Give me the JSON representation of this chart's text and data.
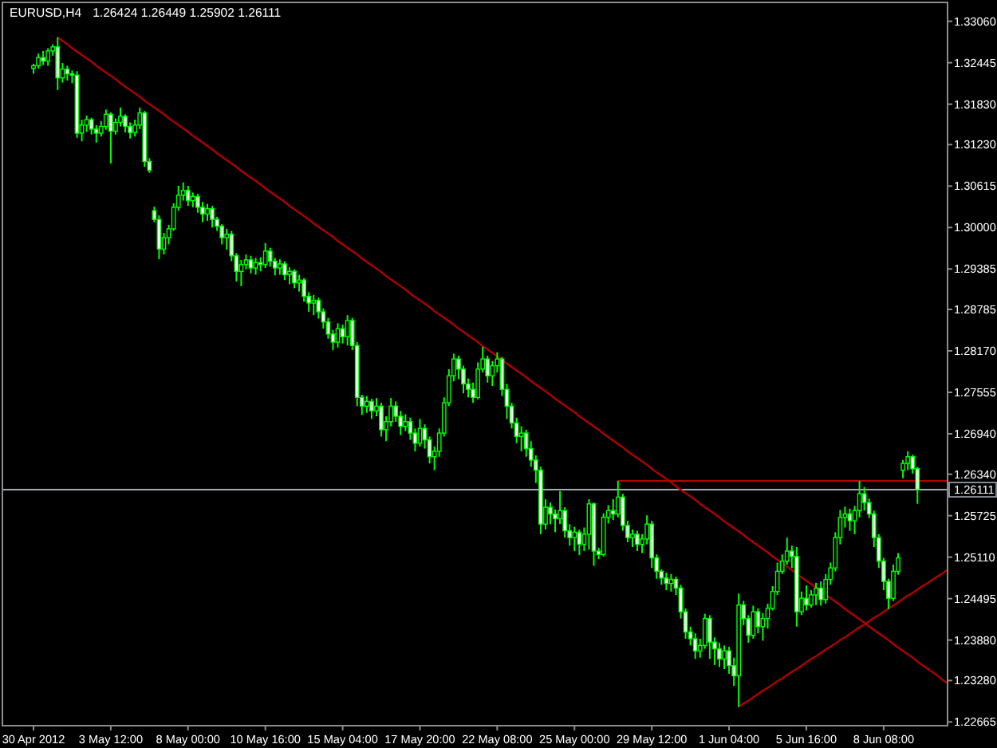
{
  "chart_data": {
    "type": "candlestick",
    "title": "EURUSD,H4",
    "subtitle": "1.26424 1.26449 1.25902 1.26111",
    "color": "#00ff00",
    "categories": [
      "30 Apr 2012",
      null,
      null,
      null,
      null,
      null,
      null,
      null,
      null,
      null,
      null,
      null,
      null,
      null,
      null,
      null,
      "3 May 12:00",
      null,
      null,
      null,
      null,
      null,
      null,
      null,
      null,
      null,
      null,
      null,
      null,
      null,
      null,
      null,
      "8 May 00:00",
      null,
      null,
      null,
      null,
      null,
      null,
      null,
      null,
      null,
      null,
      null,
      null,
      null,
      null,
      null,
      "10 May 16:00",
      null,
      null,
      null,
      null,
      null,
      null,
      null,
      null,
      null,
      null,
      null,
      null,
      null,
      null,
      null,
      "15 May 04:00",
      null,
      null,
      null,
      null,
      null,
      null,
      null,
      null,
      null,
      null,
      null,
      null,
      null,
      null,
      null,
      "17 May 20:00",
      null,
      null,
      null,
      null,
      null,
      null,
      null,
      null,
      null,
      null,
      null,
      null,
      null,
      null,
      null,
      "22 May 08:00",
      null,
      null,
      null,
      null,
      null,
      null,
      null,
      null,
      null,
      null,
      null,
      null,
      null,
      null,
      null,
      "25 May 00:00",
      null,
      null,
      null,
      null,
      null,
      null,
      null,
      null,
      null,
      null,
      null,
      null,
      null,
      null,
      null,
      "29 May 12:00",
      null,
      null,
      null,
      null,
      null,
      null,
      null,
      null,
      null,
      null,
      null,
      null,
      null,
      null,
      null,
      "1 Jun 04:00",
      null,
      null,
      null,
      null,
      null,
      null,
      null,
      null,
      null,
      null,
      null,
      null,
      null,
      null,
      null,
      "5 Jun 16:00",
      null,
      null,
      null,
      null,
      null,
      null,
      null,
      null,
      null,
      null,
      null,
      null,
      null,
      null,
      null,
      "8 Jun 08:00",
      null,
      null,
      null,
      null,
      null,
      null,
      null,
      null,
      null,
      null,
      null,
      null,
      null
    ],
    "ohlc": [
      [
        1.3236,
        1.3243,
        1.3228,
        1.324
      ],
      [
        1.324,
        1.3258,
        1.3236,
        1.3252
      ],
      [
        1.3252,
        1.3262,
        1.3241,
        1.3247
      ],
      [
        1.3247,
        1.3266,
        1.324,
        1.3262
      ],
      [
        1.3262,
        1.3272,
        1.3255,
        1.3268
      ],
      [
        1.3268,
        1.3282,
        1.3204,
        1.3222
      ],
      [
        1.3222,
        1.3244,
        1.3215,
        1.3235
      ],
      [
        1.3235,
        1.324,
        1.3218,
        1.3228
      ],
      [
        1.3228,
        1.3233,
        1.3214,
        1.3226
      ],
      [
        1.3226,
        1.3232,
        1.3133,
        1.314
      ],
      [
        1.314,
        1.316,
        1.3128,
        1.3152
      ],
      [
        1.3152,
        1.3166,
        1.3142,
        1.316
      ],
      [
        1.316,
        1.3163,
        1.3138,
        1.3146
      ],
      [
        1.3146,
        1.3152,
        1.3126,
        1.314
      ],
      [
        1.314,
        1.3158,
        1.3135,
        1.315
      ],
      [
        1.315,
        1.3175,
        1.3145,
        1.3168
      ],
      [
        1.3168,
        1.3171,
        1.3095,
        1.3143
      ],
      [
        1.3143,
        1.3162,
        1.3138,
        1.3156
      ],
      [
        1.3156,
        1.3178,
        1.315,
        1.3165
      ],
      [
        1.3165,
        1.3168,
        1.3141,
        1.315
      ],
      [
        1.315,
        1.3156,
        1.3132,
        1.3141
      ],
      [
        1.3141,
        1.316,
        1.3135,
        1.3152
      ],
      [
        1.3152,
        1.3178,
        1.3146,
        1.317
      ],
      [
        1.317,
        1.3173,
        1.309,
        1.3098
      ],
      [
        1.3098,
        1.3103,
        1.3081,
        1.3085
      ],
      [
        1.3025,
        1.3031,
        1.3008,
        1.3012
      ],
      [
        1.3012,
        1.3018,
        1.2953,
        1.2968
      ],
      [
        1.2968,
        1.2992,
        1.296,
        1.2985
      ],
      [
        1.2985,
        1.3004,
        1.2975,
        1.2998
      ],
      [
        1.2998,
        1.3036,
        1.2995,
        1.303
      ],
      [
        1.303,
        1.3062,
        1.3025,
        1.3048
      ],
      [
        1.3048,
        1.3067,
        1.304,
        1.3055
      ],
      [
        1.3055,
        1.3062,
        1.3032,
        1.304
      ],
      [
        1.304,
        1.3052,
        1.303,
        1.3046
      ],
      [
        1.3046,
        1.305,
        1.3022,
        1.303
      ],
      [
        1.303,
        1.3038,
        1.3008,
        1.302
      ],
      [
        1.302,
        1.3035,
        1.301,
        1.3028
      ],
      [
        1.3028,
        1.3032,
        1.3,
        1.3012
      ],
      [
        1.3012,
        1.3016,
        1.2995,
        1.3002
      ],
      [
        1.3002,
        1.3005,
        1.2975,
        1.2985
      ],
      [
        1.2985,
        1.2998,
        1.2967,
        1.299
      ],
      [
        1.299,
        1.2995,
        1.295,
        1.2958
      ],
      [
        1.2958,
        1.2962,
        1.292,
        1.2935
      ],
      [
        1.2935,
        1.2952,
        1.2913,
        1.2945
      ],
      [
        1.2945,
        1.296,
        1.2938,
        1.2952
      ],
      [
        1.2952,
        1.2958,
        1.2932,
        1.294
      ],
      [
        1.294,
        1.2955,
        1.293,
        1.2948
      ],
      [
        1.2948,
        1.2956,
        1.2935,
        1.2945
      ],
      [
        1.2945,
        1.2977,
        1.294,
        1.2965
      ],
      [
        1.2965,
        1.297,
        1.2942,
        1.295
      ],
      [
        1.295,
        1.2955,
        1.2929,
        1.294
      ],
      [
        1.294,
        1.2953,
        1.293,
        1.2946
      ],
      [
        1.2946,
        1.295,
        1.2922,
        1.293
      ],
      [
        1.293,
        1.2941,
        1.2916,
        1.2935
      ],
      [
        1.2935,
        1.2938,
        1.291,
        1.2918
      ],
      [
        1.2918,
        1.293,
        1.2905,
        1.2922
      ],
      [
        1.2922,
        1.2925,
        1.289,
        1.2898
      ],
      [
        1.2898,
        1.2904,
        1.2875,
        1.2888
      ],
      [
        1.2888,
        1.29,
        1.287,
        1.2892
      ],
      [
        1.2892,
        1.2896,
        1.2865,
        1.2875
      ],
      [
        1.2875,
        1.288,
        1.285,
        1.286
      ],
      [
        1.286,
        1.2866,
        1.2835,
        1.2842
      ],
      [
        1.2842,
        1.2848,
        1.2818,
        1.283
      ],
      [
        1.283,
        1.2858,
        1.2822,
        1.285
      ],
      [
        1.285,
        1.2856,
        1.2828,
        1.2838
      ],
      [
        1.2838,
        1.287,
        1.2825,
        1.2862
      ],
      [
        1.2862,
        1.2866,
        1.2818,
        1.2825
      ],
      [
        1.2825,
        1.283,
        1.2735,
        1.2748
      ],
      [
        1.2748,
        1.2752,
        1.2722,
        1.2735
      ],
      [
        1.2735,
        1.275,
        1.2725,
        1.2742
      ],
      [
        1.2742,
        1.2746,
        1.2716,
        1.2728
      ],
      [
        1.2728,
        1.2747,
        1.272,
        1.2735
      ],
      [
        1.2735,
        1.274,
        1.269,
        1.27
      ],
      [
        1.27,
        1.272,
        1.2683,
        1.2712
      ],
      [
        1.2712,
        1.2747,
        1.2705,
        1.2735
      ],
      [
        1.2735,
        1.2742,
        1.2712,
        1.272
      ],
      [
        1.272,
        1.2728,
        1.2692,
        1.2705
      ],
      [
        1.2705,
        1.2723,
        1.2698,
        1.2712
      ],
      [
        1.2712,
        1.2718,
        1.2685,
        1.2695
      ],
      [
        1.2695,
        1.2702,
        1.2668,
        1.268
      ],
      [
        1.268,
        1.2716,
        1.2675,
        1.2702
      ],
      [
        1.2702,
        1.2708,
        1.2672,
        1.2685
      ],
      [
        1.2685,
        1.269,
        1.265,
        1.266
      ],
      [
        1.266,
        1.2675,
        1.264,
        1.2668
      ],
      [
        1.2668,
        1.2702,
        1.266,
        1.2695
      ],
      [
        1.2695,
        1.2748,
        1.269,
        1.274
      ],
      [
        1.274,
        1.279,
        1.2735,
        1.278
      ],
      [
        1.278,
        1.2813,
        1.2772,
        1.2805
      ],
      [
        1.2805,
        1.281,
        1.2775,
        1.279
      ],
      [
        1.279,
        1.2795,
        1.2754,
        1.2768
      ],
      [
        1.2768,
        1.2776,
        1.2748,
        1.276
      ],
      [
        1.276,
        1.277,
        1.274,
        1.2748
      ],
      [
        1.2748,
        1.28,
        1.2745,
        1.279
      ],
      [
        1.279,
        1.2823,
        1.2785,
        1.2805
      ],
      [
        1.2805,
        1.281,
        1.277,
        1.278
      ],
      [
        1.278,
        1.2802,
        1.2765,
        1.2795
      ],
      [
        1.2795,
        1.2815,
        1.2785,
        1.2805
      ],
      [
        1.2805,
        1.2808,
        1.275,
        1.276
      ],
      [
        1.276,
        1.2768,
        1.2716,
        1.2735
      ],
      [
        1.2735,
        1.274,
        1.2702,
        1.271
      ],
      [
        1.271,
        1.2718,
        1.268,
        1.269
      ],
      [
        1.269,
        1.2705,
        1.2668,
        1.2695
      ],
      [
        1.2695,
        1.27,
        1.266,
        1.2672
      ],
      [
        1.2672,
        1.2683,
        1.2645,
        1.2655
      ],
      [
        1.2655,
        1.2662,
        1.2621,
        1.264
      ],
      [
        1.264,
        1.2645,
        1.2545,
        1.256
      ],
      [
        1.256,
        1.2597,
        1.2552,
        1.2585
      ],
      [
        1.2585,
        1.2592,
        1.256,
        1.2575
      ],
      [
        1.2575,
        1.2582,
        1.2548,
        1.2568
      ],
      [
        1.2568,
        1.2609,
        1.256,
        1.258
      ],
      [
        1.258,
        1.2585,
        1.254,
        1.255
      ],
      [
        1.255,
        1.256,
        1.2528,
        1.254
      ],
      [
        1.254,
        1.2556,
        1.252,
        1.2548
      ],
      [
        1.2548,
        1.2552,
        1.2514,
        1.253
      ],
      [
        1.253,
        1.2555,
        1.252,
        1.2545
      ],
      [
        1.2545,
        1.2597,
        1.2522,
        1.259
      ],
      [
        1.259,
        1.2592,
        1.2498,
        1.252
      ],
      [
        1.252,
        1.2525,
        1.2508,
        1.2515
      ],
      [
        1.2515,
        1.2576,
        1.2512,
        1.257
      ],
      [
        1.257,
        1.2588,
        1.2561,
        1.258
      ],
      [
        1.258,
        1.2597,
        1.2566,
        1.2575
      ],
      [
        1.2575,
        1.2624,
        1.257,
        1.26
      ],
      [
        1.26,
        1.2605,
        1.255,
        1.2558
      ],
      [
        1.2558,
        1.2565,
        1.2533,
        1.254
      ],
      [
        1.254,
        1.2552,
        1.2526,
        1.2545
      ],
      [
        1.2545,
        1.255,
        1.252,
        1.253
      ],
      [
        1.253,
        1.2545,
        1.2517,
        1.2538
      ],
      [
        1.2538,
        1.2573,
        1.253,
        1.256
      ],
      [
        1.256,
        1.2565,
        1.2495,
        1.251
      ],
      [
        1.251,
        1.2515,
        1.2479,
        1.249
      ],
      [
        1.249,
        1.2493,
        1.247,
        1.248
      ],
      [
        1.248,
        1.2488,
        1.2462,
        1.2472
      ],
      [
        1.2472,
        1.2486,
        1.246,
        1.2478
      ],
      [
        1.2478,
        1.2482,
        1.2455,
        1.2465
      ],
      [
        1.2465,
        1.247,
        1.242,
        1.243
      ],
      [
        1.243,
        1.2435,
        1.239,
        1.24
      ],
      [
        1.24,
        1.2408,
        1.238,
        1.239
      ],
      [
        1.239,
        1.2398,
        1.236,
        1.2372
      ],
      [
        1.2372,
        1.239,
        1.2362,
        1.238
      ],
      [
        1.238,
        1.2427,
        1.2375,
        1.242
      ],
      [
        1.242,
        1.2425,
        1.236,
        1.2385
      ],
      [
        1.2385,
        1.2392,
        1.2351,
        1.2375
      ],
      [
        1.2375,
        1.2384,
        1.2348,
        1.236
      ],
      [
        1.236,
        1.238,
        1.2345,
        1.2372
      ],
      [
        1.2372,
        1.2378,
        1.2338,
        1.235
      ],
      [
        1.235,
        1.2362,
        1.232,
        1.2335
      ],
      [
        1.2335,
        1.2457,
        1.2289,
        1.244
      ],
      [
        1.244,
        1.2446,
        1.241,
        1.242
      ],
      [
        1.242,
        1.2425,
        1.2384,
        1.2395
      ],
      [
        1.2395,
        1.2439,
        1.239,
        1.243
      ],
      [
        1.243,
        1.2435,
        1.2398,
        1.2408
      ],
      [
        1.2408,
        1.2428,
        1.2387,
        1.242
      ],
      [
        1.242,
        1.2442,
        1.2405,
        1.2435
      ],
      [
        1.2435,
        1.2468,
        1.2432,
        1.246
      ],
      [
        1.246,
        1.2503,
        1.2455,
        1.249
      ],
      [
        1.249,
        1.2515,
        1.2486,
        1.2505
      ],
      [
        1.2505,
        1.254,
        1.25,
        1.252
      ],
      [
        1.252,
        1.2528,
        1.2495,
        1.2512
      ],
      [
        1.2512,
        1.2526,
        1.2408,
        1.243
      ],
      [
        1.243,
        1.246,
        1.2425,
        1.245
      ],
      [
        1.245,
        1.2469,
        1.2432,
        1.244
      ],
      [
        1.244,
        1.2462,
        1.2436,
        1.2455
      ],
      [
        1.2455,
        1.2473,
        1.244,
        1.2465
      ],
      [
        1.2465,
        1.2475,
        1.2439,
        1.2448
      ],
      [
        1.2448,
        1.2486,
        1.2442,
        1.2478
      ],
      [
        1.2478,
        1.2503,
        1.247,
        1.2495
      ],
      [
        1.2495,
        1.2548,
        1.249,
        1.254
      ],
      [
        1.254,
        1.2581,
        1.253,
        1.257
      ],
      [
        1.257,
        1.2586,
        1.2555,
        1.2575
      ],
      [
        1.2575,
        1.2583,
        1.255,
        1.2565
      ],
      [
        1.2565,
        1.2587,
        1.2545,
        1.258
      ],
      [
        1.258,
        1.2624,
        1.257,
        1.2605
      ],
      [
        1.2605,
        1.2615,
        1.258,
        1.2592
      ],
      [
        1.2592,
        1.2598,
        1.2569,
        1.2575
      ],
      [
        1.2575,
        1.258,
        1.2526,
        1.254
      ],
      [
        1.254,
        1.2545,
        1.2495,
        1.2505
      ],
      [
        1.2505,
        1.251,
        1.2462,
        1.2475
      ],
      [
        1.2475,
        1.2479,
        1.2434,
        1.245
      ],
      [
        1.245,
        1.25,
        1.2446,
        1.249
      ],
      [
        1.249,
        1.2517,
        1.2485,
        1.251
      ],
      [
        1.264,
        1.2655,
        1.2628,
        1.265
      ],
      [
        1.265,
        1.2668,
        1.264,
        1.266
      ],
      [
        1.266,
        1.2663,
        1.2635,
        1.2642
      ],
      [
        1.26424,
        1.26449,
        1.25902,
        1.26111
      ],
      null,
      null,
      null,
      null,
      null,
      null
    ],
    "series": [
      {
        "type": "line",
        "color": "#b00000",
        "values": [
          null,
          null,
          null,
          null,
          null,
          1.3282,
          1.3277,
          1.3272,
          1.3266,
          1.3261,
          1.3256,
          1.3251,
          1.3246,
          1.324,
          1.3235,
          1.323,
          1.3225,
          1.322,
          1.3214,
          1.3209,
          1.3204,
          1.3199,
          1.3194,
          1.3188,
          1.3183,
          1.3178,
          1.3173,
          1.3168,
          1.3162,
          1.3157,
          1.3152,
          1.3147,
          1.3142,
          1.3136,
          1.3131,
          1.3126,
          1.3121,
          1.3116,
          1.311,
          1.3105,
          1.31,
          1.3095,
          1.309,
          1.3084,
          1.3079,
          1.3074,
          1.3069,
          1.3064,
          1.3058,
          1.3053,
          1.3048,
          1.3043,
          1.3038,
          1.3032,
          1.3027,
          1.3022,
          1.3017,
          1.3012,
          1.3006,
          1.3001,
          1.2996,
          1.2991,
          1.2986,
          1.298,
          1.2975,
          1.297,
          1.2965,
          1.296,
          1.2954,
          1.2949,
          1.2944,
          1.2939,
          1.2934,
          1.2928,
          1.2923,
          1.2918,
          1.2913,
          1.2908,
          1.2902,
          1.2897,
          1.2892,
          1.2887,
          1.2882,
          1.2876,
          1.2871,
          1.2866,
          1.2861,
          1.2856,
          1.285,
          1.2845,
          1.284,
          1.2835,
          1.283,
          1.2824,
          1.2819,
          1.2814,
          1.2809,
          1.2804,
          1.2798,
          1.2793,
          1.2788,
          1.2783,
          1.2778,
          1.2772,
          1.2767,
          1.2762,
          1.2757,
          1.2752,
          1.2746,
          1.2741,
          1.2736,
          1.2731,
          1.2726,
          1.272,
          1.2715,
          1.271,
          1.2705,
          1.27,
          1.2694,
          1.2689,
          1.2684,
          1.2679,
          1.2674,
          1.2668,
          1.2663,
          1.2658,
          1.2653,
          1.2648,
          1.2642,
          1.2637,
          1.2632,
          1.2627,
          1.2622,
          1.2616,
          1.2611,
          1.2606,
          1.2601,
          1.2596,
          1.259,
          1.2585,
          1.258,
          1.2575,
          1.257,
          1.2564,
          1.2559,
          1.2554,
          1.2549,
          1.2544,
          1.2538,
          1.2533,
          1.2528,
          1.2523,
          1.2518,
          1.2512,
          1.2507,
          1.2502,
          1.2497,
          1.2492,
          1.2486,
          1.2481,
          1.2476,
          1.2471,
          1.2466,
          1.246,
          1.2455,
          1.245,
          1.2445,
          1.244,
          1.2434,
          1.2429,
          1.2424,
          1.2419,
          1.2414,
          1.2408,
          1.2403,
          1.2398,
          1.2393,
          1.2388,
          1.2382,
          1.2377,
          1.2372,
          1.2367,
          1.2362,
          1.2356,
          1.2351,
          1.2346,
          1.2341,
          1.2336,
          1.233,
          1.2325
        ]
      },
      {
        "type": "line",
        "color": "#b00000",
        "values": [
          null,
          null,
          null,
          null,
          null,
          null,
          null,
          null,
          null,
          null,
          null,
          null,
          null,
          null,
          null,
          null,
          null,
          null,
          null,
          null,
          null,
          null,
          null,
          null,
          null,
          null,
          null,
          null,
          null,
          null,
          null,
          null,
          null,
          null,
          null,
          null,
          null,
          null,
          null,
          null,
          null,
          null,
          null,
          null,
          null,
          null,
          null,
          null,
          null,
          null,
          null,
          null,
          null,
          null,
          null,
          null,
          null,
          null,
          null,
          null,
          null,
          null,
          null,
          null,
          null,
          null,
          null,
          null,
          null,
          null,
          null,
          null,
          null,
          null,
          null,
          null,
          null,
          null,
          null,
          null,
          null,
          null,
          null,
          null,
          null,
          null,
          null,
          null,
          null,
          null,
          null,
          null,
          null,
          null,
          null,
          null,
          null,
          null,
          null,
          null,
          null,
          null,
          null,
          null,
          null,
          null,
          null,
          null,
          null,
          null,
          null,
          null,
          null,
          null,
          null,
          null,
          null,
          null,
          null,
          null,
          null,
          1.2624,
          1.2624,
          1.2624,
          1.2624,
          1.2624,
          1.2624,
          1.2624,
          1.2624,
          1.2624,
          1.2624,
          1.2624,
          1.2624,
          1.2624,
          1.2624,
          1.2624,
          1.2624,
          1.2624,
          1.2624,
          1.2624,
          1.2624,
          1.2624,
          1.2624,
          1.2624,
          1.2624,
          1.2624,
          1.2624,
          1.2624,
          1.2624,
          1.2624,
          1.2624,
          1.2624,
          1.2624,
          1.2624,
          1.2624,
          1.2624,
          1.2624,
          1.2624,
          1.2624,
          1.2624,
          1.2624,
          1.2624,
          1.2624,
          1.2624,
          1.2624,
          1.2624,
          1.2624,
          1.2624,
          1.2624,
          1.2624,
          1.2624,
          1.2624,
          1.2624,
          1.2624,
          1.2624,
          1.2624,
          1.2624,
          1.2624,
          1.2624,
          1.2624,
          1.2624,
          1.2624,
          1.2624,
          1.2624,
          1.2624,
          1.2624,
          1.2624,
          1.2624,
          1.2624,
          1.2624
        ]
      },
      {
        "type": "line",
        "color": "#b00000",
        "values": [
          null,
          null,
          null,
          null,
          null,
          null,
          null,
          null,
          null,
          null,
          null,
          null,
          null,
          null,
          null,
          null,
          null,
          null,
          null,
          null,
          null,
          null,
          null,
          null,
          null,
          null,
          null,
          null,
          null,
          null,
          null,
          null,
          null,
          null,
          null,
          null,
          null,
          null,
          null,
          null,
          null,
          null,
          null,
          null,
          null,
          null,
          null,
          null,
          null,
          null,
          null,
          null,
          null,
          null,
          null,
          null,
          null,
          null,
          null,
          null,
          null,
          null,
          null,
          null,
          null,
          null,
          null,
          null,
          null,
          null,
          null,
          null,
          null,
          null,
          null,
          null,
          null,
          null,
          null,
          null,
          null,
          null,
          null,
          null,
          null,
          null,
          null,
          null,
          null,
          null,
          null,
          null,
          null,
          null,
          null,
          null,
          null,
          null,
          null,
          null,
          null,
          null,
          null,
          null,
          null,
          null,
          null,
          null,
          null,
          null,
          null,
          null,
          null,
          null,
          null,
          null,
          null,
          null,
          null,
          null,
          null,
          null,
          null,
          null,
          null,
          null,
          null,
          null,
          null,
          null,
          null,
          null,
          null,
          null,
          null,
          null,
          null,
          null,
          null,
          null,
          null,
          null,
          null,
          null,
          null,
          null,
          1.2289,
          1.2294,
          1.2298,
          1.2303,
          1.2308,
          1.2313,
          1.2317,
          1.2322,
          1.2327,
          1.2331,
          1.2336,
          1.2341,
          1.2345,
          1.235,
          1.2355,
          1.236,
          1.2364,
          1.2369,
          1.2374,
          1.2378,
          1.2383,
          1.2388,
          1.2392,
          1.2397,
          1.2402,
          1.2407,
          1.2411,
          1.2416,
          1.2421,
          1.2425,
          1.243,
          1.2435,
          1.2439,
          1.2444,
          1.2449,
          1.2454,
          1.2458,
          1.2463,
          1.2468,
          1.2472,
          1.2477,
          1.2482,
          1.2486,
          1.2491
        ]
      }
    ],
    "ref_lines": [
      {
        "axis": "y",
        "value": 1.26111,
        "label": "1.26111",
        "color": "#a3acb5"
      }
    ],
    "ylim": [
      1.2261,
      1.3334
    ],
    "yticks": [
      {
        "value": 1.3306,
        "label": "1.33060"
      },
      1.32445,
      {
        "value": 1.3183,
        "label": "1.31830"
      },
      {
        "value": 1.3123,
        "label": "1.31230"
      },
      1.30615,
      {
        "value": 1.3,
        "label": "1.30000"
      },
      1.29385,
      1.28785,
      {
        "value": 1.2817,
        "label": "1.28170"
      },
      1.27555,
      {
        "value": 1.2694,
        "label": "1.26940"
      },
      {
        "value": 1.2634,
        "label": "1.26340"
      },
      1.25725,
      {
        "value": 1.2511,
        "label": "1.25110"
      },
      1.24495,
      {
        "value": 1.2388,
        "label": "1.23880"
      },
      {
        "value": 1.2328,
        "label": "1.23280"
      },
      1.22665
    ]
  }
}
